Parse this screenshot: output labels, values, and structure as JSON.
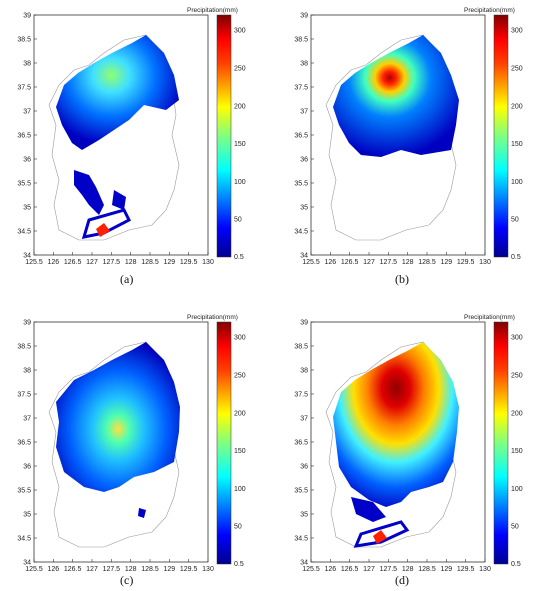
{
  "colors": {
    "scale": [
      "#00008f",
      "#0000ff",
      "#0080ff",
      "#00ffff",
      "#80ff80",
      "#ffff00",
      "#ff8000",
      "#ff0000",
      "#800000"
    ],
    "outline": "#9a9a9a",
    "axis": "#333333"
  },
  "colorbar": {
    "title": "Precipitation(mm)",
    "ticks": [
      "300",
      "250",
      "200",
      "150",
      "100",
      "50",
      "0.5"
    ]
  },
  "x_ticks": [
    "125.5",
    "126",
    "126.5",
    "127",
    "127.5",
    "128",
    "128.5",
    "129",
    "129.5",
    "130"
  ],
  "y_ticks": [
    "39",
    "38.5",
    "38",
    "37.5",
    "37",
    "36.5",
    "36",
    "35.5",
    "35",
    "34.5",
    "34"
  ],
  "panels": [
    {
      "id": "a",
      "caption": "(a)",
      "desc": "moderate precipitation over northwest; peak ~170 mm near Seoul"
    },
    {
      "id": "b",
      "caption": "(b)",
      "desc": "intense precipitation core near Seoul; peak ~300 mm"
    },
    {
      "id": "c",
      "caption": "(c)",
      "desc": "moderate precipitation in central region; peak ~190 mm"
    },
    {
      "id": "d",
      "caption": "(d)",
      "desc": "widespread heavy precipitation; peak >300 mm north-central"
    }
  ]
}
